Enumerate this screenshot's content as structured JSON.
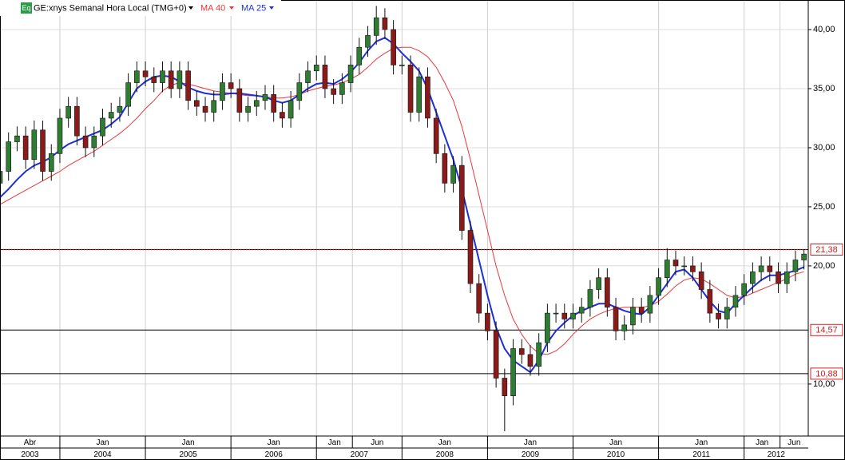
{
  "chart_data": {
    "type": "candlestick",
    "icon_label": "Eq",
    "title": "GE:xnys Semanal Hora Local (TMG+0)",
    "xlim": [
      2003.3,
      2012.75
    ],
    "ylim": [
      5.6,
      42.5
    ],
    "yticks": [
      {
        "value": 10,
        "label": "10,00"
      },
      {
        "value": 20,
        "label": "20,00"
      },
      {
        "value": 25,
        "label": "25,00"
      },
      {
        "value": 30,
        "label": "30,00"
      },
      {
        "value": 35,
        "label": "35,00"
      },
      {
        "value": 40,
        "label": "40,00"
      }
    ],
    "month_ticks": [
      {
        "value": 2003.3,
        "label": "Abr"
      },
      {
        "value": 2004,
        "label": "Jan"
      },
      {
        "value": 2005,
        "label": "Jan"
      },
      {
        "value": 2006,
        "label": "Jan"
      },
      {
        "value": 2007,
        "label": "Jan"
      },
      {
        "value": 2007.42,
        "label": "Jun"
      },
      {
        "value": 2008,
        "label": "Jan"
      },
      {
        "value": 2009,
        "label": "Jan"
      },
      {
        "value": 2010,
        "label": "Jan"
      },
      {
        "value": 2011,
        "label": "Jan"
      },
      {
        "value": 2012,
        "label": "Jan"
      },
      {
        "value": 2012.42,
        "label": "Jun"
      }
    ],
    "year_ticks": [
      {
        "value": 2003.3,
        "label": "2003"
      },
      2004,
      2005,
      2006,
      2007,
      2008,
      2009,
      2010,
      2011,
      2012
    ],
    "grid": true,
    "up_color": "#2e7d32",
    "down_color": "#8b1a1a",
    "x": [
      2003.3,
      2003.4,
      2003.5,
      2003.6,
      2003.7,
      2003.8,
      2003.9,
      2004.0,
      2004.1,
      2004.2,
      2004.3,
      2004.4,
      2004.5,
      2004.6,
      2004.7,
      2004.8,
      2004.9,
      2005.0,
      2005.1,
      2005.2,
      2005.3,
      2005.4,
      2005.5,
      2005.6,
      2005.7,
      2005.8,
      2005.9,
      2006.0,
      2006.1,
      2006.2,
      2006.3,
      2006.4,
      2006.5,
      2006.6,
      2006.7,
      2006.8,
      2006.9,
      2007.0,
      2007.1,
      2007.2,
      2007.3,
      2007.4,
      2007.5,
      2007.6,
      2007.7,
      2007.8,
      2007.9,
      2008.0,
      2008.1,
      2008.2,
      2008.3,
      2008.4,
      2008.5,
      2008.6,
      2008.7,
      2008.8,
      2008.9,
      2009.0,
      2009.1,
      2009.2,
      2009.3,
      2009.4,
      2009.5,
      2009.6,
      2009.7,
      2009.8,
      2009.9,
      2010.0,
      2010.1,
      2010.2,
      2010.3,
      2010.4,
      2010.5,
      2010.6,
      2010.7,
      2010.8,
      2010.9,
      2011.0,
      2011.1,
      2011.2,
      2011.3,
      2011.4,
      2011.5,
      2011.6,
      2011.7,
      2011.8,
      2011.9,
      2012.0,
      2012.1,
      2012.2,
      2012.3,
      2012.4,
      2012.5,
      2012.6,
      2012.7
    ],
    "candles": {
      "open": [
        27.0,
        28.0,
        30.5,
        31.0,
        29.0,
        31.5,
        28.0,
        29.5,
        32.5,
        33.5,
        31.0,
        30.0,
        31.0,
        32.5,
        33.0,
        33.5,
        35.5,
        36.5,
        36.0,
        35.5,
        36.5,
        35.0,
        36.5,
        34.0,
        33.5,
        33.0,
        34.0,
        35.5,
        35.0,
        33.0,
        33.5,
        34.0,
        34.5,
        33.0,
        32.5,
        34.0,
        35.5,
        36.5,
        37.0,
        35.0,
        34.5,
        35.5,
        37.0,
        38.5,
        39.5,
        41.0,
        40.0,
        37.0,
        37.0,
        33.0,
        36.0,
        32.5,
        29.5,
        27.0,
        28.5,
        23.0,
        18.5,
        16.0,
        14.5,
        10.5,
        9.0,
        13.0,
        12.5,
        11.5,
        13.5,
        16.0,
        16.0,
        15.5,
        16.0,
        16.5,
        18.0,
        19.0,
        16.5,
        14.5,
        15.0,
        16.5,
        16.0,
        17.5,
        19.0,
        20.5,
        20.0,
        20.0,
        19.5,
        18.0,
        16.0,
        15.5,
        16.5,
        17.5,
        18.5,
        19.5,
        20.0,
        19.5,
        18.5,
        19.5,
        20.5
      ],
      "high": [
        28.8,
        31.3,
        31.8,
        31.8,
        32.3,
        32.3,
        30.3,
        33.3,
        34.3,
        34.3,
        31.8,
        31.8,
        33.3,
        33.8,
        34.3,
        36.3,
        37.3,
        37.3,
        36.8,
        37.3,
        37.3,
        37.3,
        37.3,
        34.8,
        34.3,
        34.8,
        36.3,
        36.3,
        35.8,
        34.3,
        34.8,
        35.3,
        35.3,
        33.8,
        34.8,
        36.3,
        37.3,
        37.8,
        37.8,
        35.8,
        36.3,
        37.8,
        39.3,
        40.3,
        42.0,
        41.8,
        40.8,
        37.8,
        37.8,
        36.8,
        36.8,
        33.3,
        30.3,
        29.3,
        29.3,
        23.8,
        19.3,
        16.8,
        15.3,
        11.3,
        13.8,
        13.8,
        13.3,
        14.3,
        16.8,
        16.8,
        16.8,
        16.8,
        17.3,
        18.8,
        19.8,
        19.8,
        17.3,
        15.8,
        17.3,
        17.3,
        18.3,
        19.8,
        21.5,
        21.3,
        20.8,
        20.8,
        20.3,
        18.8,
        16.8,
        17.3,
        18.3,
        19.3,
        20.3,
        20.8,
        20.8,
        20.3,
        20.3,
        21.3,
        21.4
      ],
      "low": [
        26.2,
        27.2,
        29.7,
        28.2,
        28.2,
        27.2,
        27.2,
        28.7,
        31.7,
        30.2,
        29.2,
        29.2,
        30.2,
        31.7,
        32.2,
        32.7,
        34.7,
        35.2,
        34.7,
        34.7,
        34.2,
        34.2,
        33.2,
        32.7,
        32.2,
        32.2,
        33.2,
        34.2,
        32.2,
        32.2,
        32.7,
        33.2,
        32.2,
        31.7,
        31.7,
        33.2,
        34.7,
        35.7,
        34.2,
        33.7,
        33.7,
        34.7,
        36.2,
        37.7,
        38.7,
        39.2,
        36.2,
        36.2,
        32.2,
        32.2,
        31.7,
        28.7,
        26.2,
        26.2,
        22.2,
        17.7,
        15.2,
        13.7,
        9.7,
        6.0,
        8.2,
        11.7,
        10.7,
        10.7,
        12.7,
        15.2,
        14.7,
        14.7,
        15.2,
        15.7,
        17.2,
        15.7,
        13.7,
        13.7,
        14.2,
        15.2,
        15.2,
        16.7,
        18.2,
        19.2,
        19.2,
        18.7,
        17.2,
        15.2,
        14.7,
        14.7,
        15.7,
        16.7,
        17.7,
        18.7,
        18.7,
        17.7,
        17.7,
        18.7,
        19.7
      ],
      "close": [
        28.0,
        30.5,
        31.0,
        29.0,
        31.5,
        28.0,
        29.5,
        32.5,
        33.5,
        31.0,
        30.0,
        31.0,
        32.5,
        33.0,
        33.5,
        35.5,
        36.5,
        36.0,
        35.5,
        36.5,
        35.0,
        36.5,
        34.0,
        33.5,
        33.0,
        34.0,
        35.5,
        35.0,
        33.0,
        33.5,
        34.0,
        34.5,
        33.0,
        32.5,
        34.0,
        35.5,
        36.5,
        37.0,
        35.0,
        34.5,
        35.5,
        37.0,
        38.5,
        39.5,
        41.0,
        40.0,
        37.0,
        37.0,
        33.0,
        36.0,
        32.5,
        29.5,
        27.0,
        28.5,
        23.0,
        18.5,
        16.0,
        14.5,
        10.5,
        9.0,
        13.0,
        12.5,
        11.5,
        13.5,
        16.0,
        16.0,
        15.5,
        16.0,
        16.5,
        18.0,
        19.0,
        16.5,
        14.5,
        15.0,
        16.5,
        16.0,
        17.5,
        19.0,
        20.5,
        20.0,
        20.0,
        19.5,
        18.0,
        16.0,
        15.5,
        16.5,
        17.5,
        18.5,
        19.5,
        20.0,
        19.5,
        18.5,
        19.5,
        20.5,
        21.0
      ]
    },
    "series": [
      {
        "name": "MA 40",
        "color": "#e8383d",
        "width": 1,
        "values": [
          25.2,
          25.6,
          26.0,
          26.4,
          26.8,
          27.2,
          27.6,
          28.0,
          28.5,
          28.9,
          29.3,
          29.7,
          30.2,
          30.7,
          31.2,
          31.8,
          32.5,
          33.3,
          34.0,
          34.8,
          35.3,
          35.5,
          35.4,
          35.2,
          35.0,
          34.8,
          34.7,
          34.6,
          34.5,
          34.4,
          34.4,
          34.3,
          34.2,
          34.2,
          34.3,
          34.5,
          34.8,
          35.0,
          35.2,
          35.3,
          35.5,
          35.8,
          36.2,
          36.8,
          37.5,
          38.0,
          38.4,
          38.5,
          38.5,
          38.2,
          37.7,
          36.8,
          35.5,
          34.0,
          31.8,
          29.0,
          26.0,
          23.0,
          20.0,
          17.5,
          15.5,
          14.2,
          13.2,
          12.6,
          12.5,
          12.8,
          13.4,
          14.2,
          14.9,
          15.5,
          15.9,
          16.2,
          16.4,
          16.5,
          16.5,
          16.5,
          16.6,
          17.0,
          17.6,
          18.3,
          18.8,
          19.0,
          18.9,
          18.5,
          18.0,
          17.5,
          17.3,
          17.4,
          17.7,
          18.0,
          18.3,
          18.6,
          18.9,
          19.3,
          19.5
        ]
      },
      {
        "name": "MA 25",
        "color": "#1f2fd6",
        "width": 2,
        "values": [
          25.8,
          26.5,
          27.3,
          28.0,
          28.5,
          28.8,
          29.2,
          29.8,
          30.3,
          30.6,
          30.9,
          31.2,
          31.5,
          32.0,
          32.6,
          33.8,
          35.0,
          35.6,
          36.0,
          36.1,
          36.0,
          35.6,
          35.1,
          34.8,
          34.6,
          34.5,
          34.5,
          34.6,
          34.6,
          34.5,
          34.4,
          34.3,
          34.0,
          33.8,
          34.0,
          34.5,
          35.0,
          35.4,
          35.5,
          35.4,
          35.8,
          36.4,
          37.2,
          38.2,
          39.0,
          39.3,
          38.8,
          38.0,
          37.3,
          36.5,
          35.0,
          33.0,
          31.0,
          29.0,
          26.5,
          23.5,
          20.5,
          17.5,
          14.8,
          13.0,
          12.0,
          11.5,
          11.0,
          12.0,
          13.5,
          14.5,
          15.2,
          15.8,
          16.2,
          16.5,
          16.8,
          16.8,
          16.5,
          16.2,
          16.0,
          15.9,
          16.5,
          17.5,
          18.5,
          19.5,
          19.7,
          19.0,
          18.0,
          17.0,
          16.2,
          16.0,
          16.8,
          17.5,
          18.2,
          18.8,
          19.2,
          19.2,
          19.4,
          19.6,
          19.9
        ]
      }
    ],
    "levels": [
      {
        "value": 21.38,
        "label": "21,38",
        "dotted": true
      },
      {
        "value": 14.57,
        "label": "14,57",
        "dotted": false
      },
      {
        "value": 10.88,
        "label": "10,88",
        "dotted": false
      }
    ]
  }
}
